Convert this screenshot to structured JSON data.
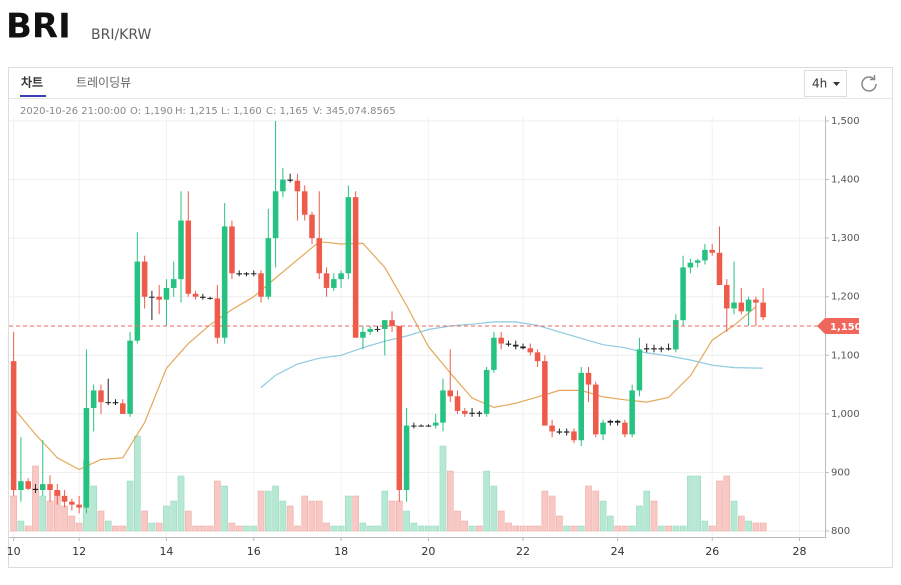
{
  "header": {
    "title": "BRI",
    "pair": "BRI/KRW"
  },
  "tabs": [
    "차트",
    "트레이딩뷰"
  ],
  "interval": "4h",
  "info": {
    "time": "2020-10-26 21:00:00",
    "open": "O: 1,190",
    "high": "H: 1,215",
    "low": "L: 1,160",
    "close": "C: 1,165",
    "volume": "V: 345,074.8565"
  },
  "chart_data": {
    "type": "candlestick",
    "ylim": [
      800,
      1500
    ],
    "yticks": [
      {
        "value": 800,
        "label": "800"
      },
      {
        "value": 900,
        "label": "900"
      },
      {
        "value": 1000,
        "label": "1,000"
      },
      {
        "value": 1100,
        "label": "1,100"
      },
      {
        "value": 1200,
        "label": "1,200"
      },
      {
        "value": 1300,
        "label": "1,300"
      },
      {
        "value": 1400,
        "label": "1,400"
      },
      {
        "value": 1500,
        "label": "1,500"
      }
    ],
    "xlim": [
      -0.5,
      111.5
    ],
    "xticks": [
      {
        "value": 0,
        "label": "10"
      },
      {
        "value": 9,
        "label": "12"
      },
      {
        "value": 21,
        "label": "14"
      },
      {
        "value": 33,
        "label": "16"
      },
      {
        "value": 45,
        "label": "18"
      },
      {
        "value": 57,
        "label": "20"
      },
      {
        "value": 70,
        "label": "22"
      },
      {
        "value": 83,
        "label": "24"
      },
      {
        "value": 96,
        "label": "26"
      },
      {
        "value": 108,
        "label": "28"
      }
    ],
    "grid": true,
    "up_color": "#26c281",
    "down_color": "#ef5b4b",
    "ohlc": [
      [
        1090,
        1140,
        860,
        870
      ],
      [
        870,
        960,
        850,
        885
      ],
      [
        885,
        890,
        870,
        872
      ],
      [
        872,
        880,
        865,
        870
      ],
      [
        870,
        955,
        860,
        880
      ],
      [
        880,
        895,
        850,
        870
      ],
      [
        870,
        880,
        845,
        860
      ],
      [
        860,
        870,
        840,
        850
      ],
      [
        850,
        855,
        835,
        845
      ],
      [
        845,
        860,
        830,
        840
      ],
      [
        840,
        1110,
        830,
        1010
      ],
      [
        1010,
        1050,
        970,
        1040
      ],
      [
        1040,
        1050,
        1000,
        1020
      ],
      [
        1020,
        1060,
        1015,
        1020
      ],
      [
        1020,
        1025,
        1015,
        1018
      ],
      [
        1018,
        1025,
        1000,
        1000
      ],
      [
        1000,
        1140,
        995,
        1125
      ],
      [
        1125,
        1310,
        1120,
        1260
      ],
      [
        1260,
        1270,
        1180,
        1200
      ],
      [
        1200,
        1210,
        1160,
        1200
      ],
      [
        1200,
        1220,
        1170,
        1195
      ],
      [
        1195,
        1230,
        1150,
        1215
      ],
      [
        1215,
        1260,
        1200,
        1230
      ],
      [
        1230,
        1380,
        1190,
        1330
      ],
      [
        1330,
        1380,
        1200,
        1205
      ],
      [
        1205,
        1210,
        1195,
        1200
      ],
      [
        1200,
        1205,
        1195,
        1198
      ],
      [
        1198,
        1200,
        1195,
        1197
      ],
      [
        1197,
        1220,
        1120,
        1130
      ],
      [
        1130,
        1360,
        1120,
        1320
      ],
      [
        1320,
        1330,
        1230,
        1240
      ],
      [
        1240,
        1245,
        1235,
        1238
      ],
      [
        1238,
        1242,
        1235,
        1240
      ],
      [
        1240,
        1245,
        1235,
        1240
      ],
      [
        1240,
        1245,
        1190,
        1200
      ],
      [
        1200,
        1350,
        1195,
        1300
      ],
      [
        1300,
        1500,
        1250,
        1380
      ],
      [
        1380,
        1420,
        1370,
        1400
      ],
      [
        1400,
        1410,
        1395,
        1398
      ],
      [
        1398,
        1410,
        1330,
        1380
      ],
      [
        1380,
        1390,
        1330,
        1340
      ],
      [
        1340,
        1345,
        1290,
        1300
      ],
      [
        1300,
        1380,
        1230,
        1240
      ],
      [
        1240,
        1250,
        1200,
        1215
      ],
      [
        1215,
        1240,
        1210,
        1230
      ],
      [
        1230,
        1245,
        1215,
        1240
      ],
      [
        1240,
        1390,
        1230,
        1370
      ],
      [
        1370,
        1380,
        1130,
        1130
      ],
      [
        1130,
        1150,
        1110,
        1140
      ],
      [
        1140,
        1150,
        1135,
        1145
      ],
      [
        1145,
        1150,
        1140,
        1145
      ],
      [
        1145,
        1160,
        1100,
        1160
      ],
      [
        1160,
        1175,
        1140,
        1150
      ],
      [
        1150,
        1150,
        850,
        870
      ],
      [
        870,
        1010,
        850,
        980
      ],
      [
        980,
        985,
        975,
        980
      ],
      [
        980,
        982,
        978,
        980
      ],
      [
        980,
        982,
        978,
        980
      ],
      [
        980,
        1000,
        975,
        985
      ],
      [
        985,
        1060,
        970,
        1040
      ],
      [
        1040,
        1110,
        1020,
        1030
      ],
      [
        1030,
        1040,
        1000,
        1005
      ],
      [
        1005,
        1010,
        995,
        1000
      ],
      [
        1000,
        1010,
        995,
        1002
      ],
      [
        1002,
        1005,
        995,
        1000
      ],
      [
        1000,
        1080,
        995,
        1075
      ],
      [
        1075,
        1140,
        1070,
        1130
      ],
      [
        1130,
        1140,
        1110,
        1120
      ],
      [
        1120,
        1125,
        1115,
        1118
      ],
      [
        1118,
        1125,
        1110,
        1115
      ],
      [
        1115,
        1120,
        1110,
        1112
      ],
      [
        1112,
        1120,
        1100,
        1105
      ],
      [
        1105,
        1110,
        1080,
        1090
      ],
      [
        1090,
        1100,
        980,
        980
      ],
      [
        980,
        990,
        960,
        970
      ],
      [
        970,
        975,
        965,
        968
      ],
      [
        968,
        975,
        963,
        970
      ],
      [
        970,
        975,
        950,
        955
      ],
      [
        955,
        1080,
        945,
        1070
      ],
      [
        1070,
        1080,
        1020,
        1050
      ],
      [
        1050,
        1055,
        960,
        965
      ],
      [
        965,
        990,
        955,
        985
      ],
      [
        985,
        990,
        980,
        988
      ],
      [
        988,
        990,
        980,
        985
      ],
      [
        985,
        990,
        960,
        965
      ],
      [
        965,
        1050,
        960,
        1040
      ],
      [
        1040,
        1130,
        1030,
        1110
      ],
      [
        1110,
        1120,
        1105,
        1112
      ],
      [
        1112,
        1118,
        1105,
        1110
      ],
      [
        1110,
        1115,
        1105,
        1112
      ],
      [
        1112,
        1120,
        1108,
        1110
      ],
      [
        1110,
        1170,
        1105,
        1160
      ],
      [
        1160,
        1270,
        1150,
        1250
      ],
      [
        1250,
        1265,
        1240,
        1258
      ],
      [
        1258,
        1265,
        1250,
        1262
      ],
      [
        1262,
        1290,
        1255,
        1280
      ],
      [
        1280,
        1290,
        1270,
        1275
      ],
      [
        1275,
        1320,
        1220,
        1220
      ],
      [
        1220,
        1230,
        1140,
        1180
      ],
      [
        1180,
        1260,
        1170,
        1190
      ],
      [
        1190,
        1215,
        1170,
        1175
      ],
      [
        1175,
        1200,
        1150,
        1195
      ],
      [
        1195,
        1200,
        1150,
        1190
      ],
      [
        1190,
        1215,
        1160,
        1165
      ]
    ],
    "volume": [
      35,
      10,
      5,
      65,
      35,
      30,
      40,
      25,
      15,
      8,
      70,
      45,
      20,
      10,
      5,
      5,
      50,
      95,
      20,
      8,
      8,
      25,
      30,
      55,
      20,
      5,
      5,
      5,
      50,
      45,
      8,
      5,
      5,
      5,
      40,
      40,
      45,
      30,
      25,
      5,
      35,
      30,
      30,
      8,
      5,
      5,
      35,
      35,
      8,
      5,
      5,
      40,
      30,
      30,
      20,
      8,
      5,
      5,
      5,
      85,
      60,
      20,
      10,
      5,
      5,
      60,
      45,
      20,
      8,
      5,
      5,
      5,
      5,
      40,
      35,
      15,
      5,
      5,
      5,
      45,
      40,
      30,
      15,
      5,
      5,
      5,
      25,
      40,
      30,
      5,
      5,
      5,
      5,
      55,
      55,
      10,
      5,
      50,
      55,
      30,
      15,
      10,
      8,
      8
    ],
    "volume_up_color": "#b7e8d4",
    "volume_down_color": "#f7c8c4",
    "series": [
      {
        "color": "#e3a85a",
        "x": [
          0,
          3,
          6,
          9,
          12,
          15,
          18,
          21,
          24,
          27,
          30,
          33,
          36,
          39,
          42,
          45,
          48,
          51,
          54,
          57,
          60,
          63,
          66,
          69,
          72,
          75,
          78,
          81,
          84,
          87,
          90,
          93,
          96,
          99,
          102
        ],
        "values": [
          1010,
          965,
          925,
          905,
          922,
          925,
          985,
          1078,
          1120,
          1152,
          1178,
          1200,
          1232,
          1263,
          1294,
          1290,
          1291,
          1250,
          1185,
          1115,
          1070,
          1027,
          1011,
          1018,
          1029,
          1040,
          1040,
          1029,
          1024,
          1020,
          1028,
          1065,
          1126,
          1151,
          1183
        ]
      },
      {
        "color": "#8ecae0",
        "x": [
          34,
          36,
          39,
          42,
          45,
          48,
          51,
          54,
          57,
          60,
          63,
          66,
          69,
          72,
          75,
          78,
          81,
          84,
          87,
          90,
          93,
          96,
          99,
          103
        ],
        "values": [
          1045,
          1066,
          1085,
          1095,
          1100,
          1113,
          1124,
          1133,
          1144,
          1150,
          1153,
          1157,
          1157,
          1151,
          1140,
          1129,
          1118,
          1113,
          1104,
          1099,
          1092,
          1083,
          1079,
          1078
        ]
      }
    ],
    "price_line": {
      "value": 1150,
      "label": "1,150",
      "color": "#f0665a"
    }
  }
}
